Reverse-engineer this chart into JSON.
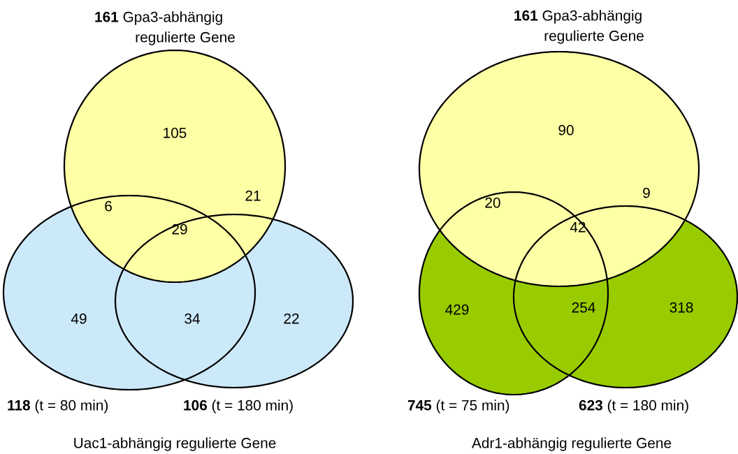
{
  "chart_data": [
    {
      "type": "other",
      "title": "Uac1-abhängig regulierte Gene",
      "categories": [
        null,
        null,
        null,
        null,
        null,
        null,
        null
      ],
      "values": [
        105,
        6,
        21,
        29,
        49,
        34,
        22
      ],
      "data_labels": true,
      "colors": [
        "#ffffa6",
        "#ffffa6",
        "#ffffa6",
        "#ffffa6",
        "#cce9fa",
        "#cce9fa",
        "#cce9fa"
      ],
      "annotations": [
        "161 Gpa3-abhängig regulierte Gene",
        "118 (t = 80 min)",
        "106 (t = 180 min)"
      ]
    },
    {
      "type": "other",
      "title": "Adr1-abhängig regulierte Gene",
      "categories": [
        null,
        null,
        null,
        null,
        null,
        null,
        null
      ],
      "values": [
        90,
        20,
        9,
        42,
        429,
        254,
        318
      ],
      "data_labels": true,
      "colors": [
        "#ffffa6",
        "#ffffa6",
        "#ffffa6",
        "#ffffa6",
        "#99cc00",
        "#99cc00",
        "#99cc00"
      ],
      "annotations": [
        "161 Gpa3-abhängig regulierte Gene",
        "745 (t = 75 min)",
        "623 (t = 180 min)"
      ]
    }
  ]
}
